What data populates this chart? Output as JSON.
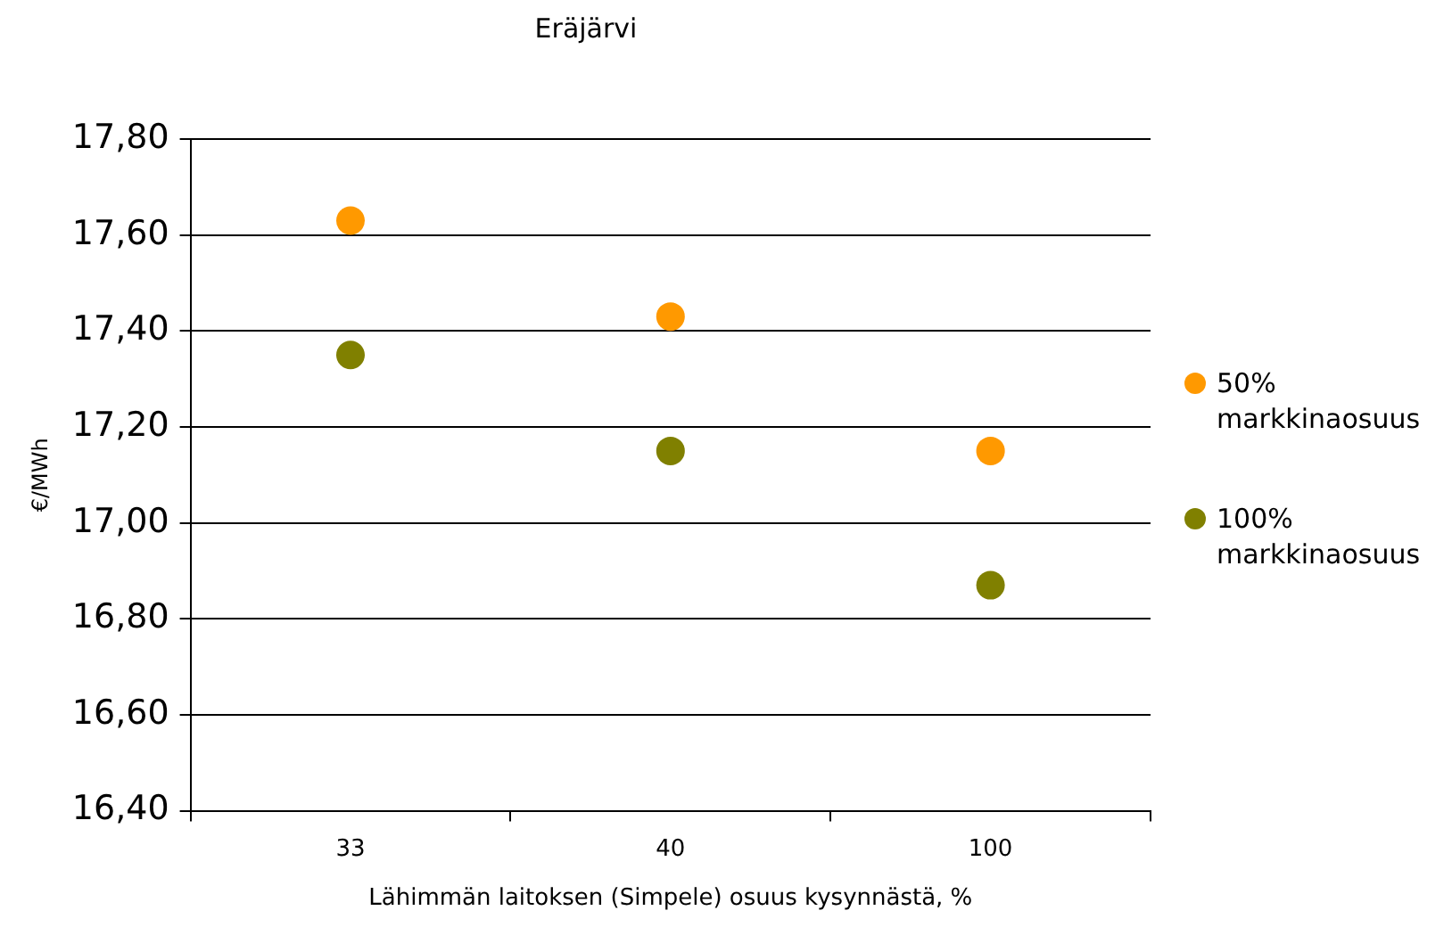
{
  "chart_data": {
    "type": "scatter",
    "title": "Eräjärvi",
    "xlabel": "Lähimmän laitoksen (Simpele) osuus kysynnästä, %",
    "ylabel": "€/MWh",
    "categories": [
      "33",
      "40",
      "100"
    ],
    "series": [
      {
        "name": "50% markkinaosuus",
        "color": "#ff9900",
        "values": [
          17.63,
          17.43,
          17.15
        ]
      },
      {
        "name": "100% markkinaosuus",
        "color": "#808000",
        "values": [
          17.35,
          17.15,
          16.87
        ]
      }
    ],
    "ylim": [
      16.4,
      17.8
    ],
    "yticks": [
      {
        "value": 16.4,
        "label": "16,40"
      },
      {
        "value": 16.6,
        "label": "16,60"
      },
      {
        "value": 16.8,
        "label": "16,80"
      },
      {
        "value": 17.0,
        "label": "17,00"
      },
      {
        "value": 17.2,
        "label": "17,20"
      },
      {
        "value": 17.4,
        "label": "17,40"
      },
      {
        "value": 17.6,
        "label": "17,60"
      },
      {
        "value": 17.8,
        "label": "17,80"
      }
    ],
    "grid": "y",
    "legend": "right",
    "marker": "circle"
  }
}
